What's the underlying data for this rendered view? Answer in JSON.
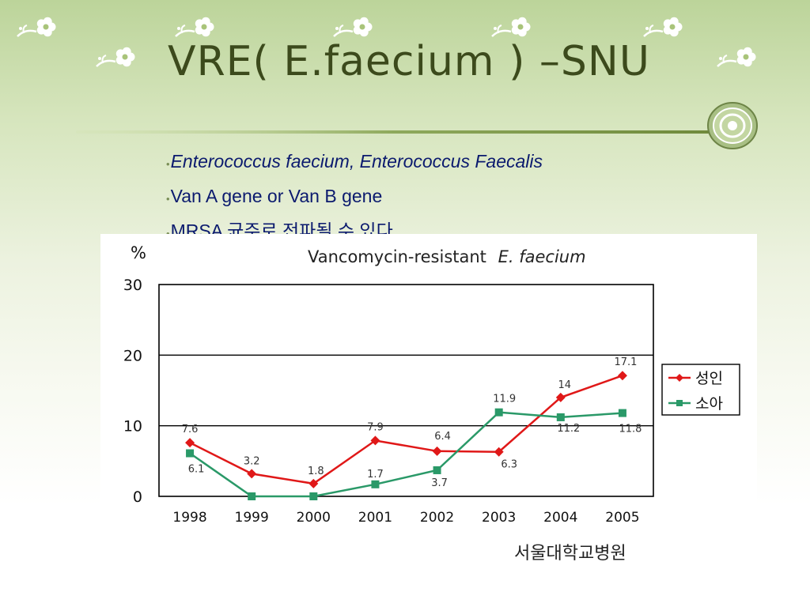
{
  "slide": {
    "title": "VRE( E.faecium ) –SNU",
    "bullets": [
      {
        "dot": "•",
        "text": "Enterococcus faecium, Enterococcus Faecalis",
        "italic": true
      },
      {
        "dot": "•",
        "text": "Van A gene or Van B gene",
        "italic": false
      },
      {
        "dot": "•",
        "text": "MRSA 균주로 전파될 수 있다.",
        "italic": false
      }
    ],
    "source": "서울대학교병원",
    "decor_icons": [
      "vine-flower-icon",
      "round-emblem-icon"
    ]
  },
  "colors": {
    "series_adult": "#e01818",
    "series_child": "#2a9968",
    "title": "#3c4a1c",
    "bullet_text": "#0b1a6e"
  },
  "chart_data": {
    "type": "line",
    "unit_label": "%",
    "title_plain": "Vancomycin-resistant ",
    "title_italic": "E. faecium",
    "x": [
      "1998",
      "1999",
      "2000",
      "2001",
      "2002",
      "2003",
      "2004",
      "2005"
    ],
    "ylim": [
      0,
      30
    ],
    "yticks": [
      "0",
      "10",
      "20",
      "30"
    ],
    "grid": "horizontal at 10 and 20",
    "legend_position": "right",
    "series": [
      {
        "name": "성인",
        "marker": "diamond",
        "values": [
          7.6,
          3.2,
          1.8,
          7.9,
          6.4,
          6.3,
          14,
          17.1
        ],
        "labels": [
          "7.6",
          "3.2",
          "1.8",
          "7.9",
          "6.4",
          "6.3",
          "14",
          "17.1"
        ]
      },
      {
        "name": "소아",
        "marker": "square",
        "values": [
          6.1,
          0,
          0,
          1.7,
          3.7,
          11.9,
          11.2,
          11.8
        ],
        "labels": [
          "6.1",
          "",
          "",
          "1.7",
          "3.7",
          "11.9",
          "11.2",
          "11.8"
        ]
      }
    ]
  }
}
